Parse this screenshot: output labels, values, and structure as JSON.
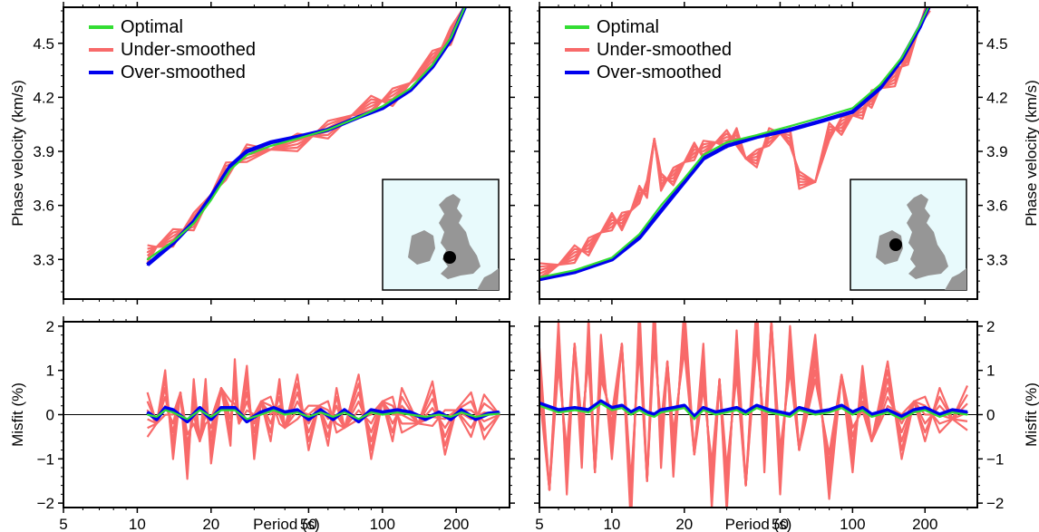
{
  "figure": {
    "legend_labels": [
      "Optimal",
      "Under-smoothed",
      "Over-smoothed"
    ],
    "colors": {
      "optimal": "#33dd33",
      "under_smoothed": "#f86a6a",
      "over_smoothed": "#0000ee",
      "map_ocean": "#e8fafc",
      "map_land": "#969696"
    },
    "map_dot_color": "#000000"
  },
  "chart_data": [
    {
      "type": "line",
      "panel": "top-left",
      "xlabel": "",
      "ylabel": "Phase velocity (km/s)",
      "x_scale": "log",
      "xlim": [
        5,
        330
      ],
      "ylim": [
        3.08,
        4.7
      ],
      "y_ticks": [
        "3.3",
        "3.6",
        "3.9",
        "4.2",
        "4.5"
      ],
      "legend": "top-left",
      "series": [
        {
          "name": "Optimal",
          "x": [
            11,
            14,
            17,
            20,
            24,
            28,
            35,
            45,
            60,
            80,
            100,
            130,
            160,
            190,
            220
          ],
          "y": [
            3.3,
            3.4,
            3.5,
            3.63,
            3.8,
            3.88,
            3.93,
            3.97,
            4.02,
            4.09,
            4.15,
            4.25,
            4.38,
            4.53,
            4.72
          ]
        },
        {
          "name": "Under-smoothed",
          "x": [
            11,
            12,
            14,
            17,
            20,
            23,
            28,
            35,
            45,
            60,
            75,
            90,
            110,
            130,
            160,
            190,
            220
          ],
          "y": [
            3.34,
            3.37,
            3.41,
            3.52,
            3.66,
            3.78,
            3.9,
            3.91,
            3.94,
            4.03,
            4.1,
            4.15,
            4.21,
            4.28,
            4.4,
            4.55,
            4.72
          ]
        },
        {
          "name": "Over-smoothed",
          "x": [
            11,
            14,
            17,
            20,
            24,
            28,
            35,
            45,
            60,
            80,
            100,
            130,
            160,
            190,
            220
          ],
          "y": [
            3.27,
            3.39,
            3.51,
            3.65,
            3.82,
            3.9,
            3.95,
            3.98,
            4.02,
            4.09,
            4.14,
            4.24,
            4.37,
            4.52,
            4.72
          ]
        }
      ],
      "inset_map": "bottom-right"
    },
    {
      "type": "line",
      "panel": "top-right",
      "xlabel": "",
      "ylabel": "Phase velocity (km/s)",
      "x_scale": "log",
      "xlim": [
        5,
        330
      ],
      "ylim": [
        3.08,
        4.7
      ],
      "y_ticks": [
        "3.3",
        "3.6",
        "3.9",
        "4.2",
        "4.5"
      ],
      "legend": "top-left",
      "series": [
        {
          "name": "Optimal",
          "x": [
            5,
            7,
            10,
            13,
            16,
            20,
            24,
            30,
            40,
            55,
            75,
            100,
            130,
            160,
            190,
            210
          ],
          "y": [
            3.2,
            3.24,
            3.31,
            3.44,
            3.6,
            3.75,
            3.88,
            3.95,
            3.99,
            4.04,
            4.09,
            4.14,
            4.27,
            4.42,
            4.6,
            4.72
          ]
        },
        {
          "name": "Under-smoothed",
          "x": [
            5,
            6,
            7,
            8,
            9,
            10,
            11,
            12,
            13,
            14,
            15,
            16,
            18,
            20,
            22,
            24,
            27,
            30,
            33,
            36,
            40,
            45,
            50,
            55,
            60,
            70,
            80,
            90,
            100,
            110,
            120,
            130,
            150,
            170,
            190,
            210
          ],
          "y": [
            3.24,
            3.27,
            3.32,
            3.38,
            3.45,
            3.5,
            3.52,
            3.57,
            3.65,
            3.7,
            3.97,
            3.72,
            3.77,
            3.84,
            3.89,
            3.92,
            3.95,
            3.96,
            3.99,
            3.86,
            3.85,
            3.99,
            4.0,
            3.97,
            3.75,
            3.73,
            4.0,
            4.05,
            4.1,
            4.12,
            4.2,
            4.25,
            4.3,
            4.44,
            4.6,
            4.72
          ]
        },
        {
          "name": "Over-smoothed",
          "x": [
            5,
            7,
            10,
            13,
            16,
            20,
            24,
            30,
            40,
            55,
            75,
            100,
            130,
            160,
            190,
            210
          ],
          "y": [
            3.19,
            3.23,
            3.3,
            3.42,
            3.57,
            3.73,
            3.86,
            3.93,
            3.98,
            4.02,
            4.07,
            4.12,
            4.25,
            4.41,
            4.59,
            4.72
          ]
        }
      ],
      "inset_map": "bottom-right"
    },
    {
      "type": "line",
      "panel": "bottom-left",
      "xlabel": "Period (s)",
      "ylabel": "Misfit (%)",
      "x_scale": "log",
      "xlim": [
        5,
        330
      ],
      "ylim": [
        -2.1,
        2.1
      ],
      "x_ticks": [
        "5",
        "10",
        "20",
        "50",
        "100",
        "200"
      ],
      "y_ticks": [
        "-2",
        "-1",
        "0",
        "1",
        "2"
      ],
      "series": [
        {
          "name": "Optimal",
          "x": [
            11,
            12,
            13,
            14,
            16,
            18,
            20,
            22,
            25,
            28,
            32,
            36,
            40,
            45,
            50,
            56,
            63,
            70,
            80,
            90,
            100,
            115,
            130,
            150,
            170,
            190,
            210,
            240,
            270,
            300
          ],
          "y": [
            0,
            -0.05,
            0.1,
            0.05,
            -0.1,
            0.1,
            -0.05,
            0.1,
            0.1,
            -0.1,
            0,
            0.1,
            0,
            0.05,
            -0.05,
            0.05,
            -0.05,
            0.05,
            -0.1,
            0.05,
            0,
            0.05,
            0,
            -0.05,
            0,
            -0.05,
            0.05,
            -0.05,
            0,
            0.02
          ]
        },
        {
          "name": "Under-smoothed",
          "x": [
            11,
            12,
            13,
            14,
            15,
            16,
            17,
            18,
            19,
            20,
            22,
            24,
            25,
            26,
            28,
            30,
            32,
            35,
            38,
            40,
            45,
            50,
            55,
            60,
            65,
            70,
            80,
            90,
            100,
            110,
            120,
            140,
            160,
            180,
            200,
            230,
            260,
            300
          ],
          "y": [
            0.1,
            -0.2,
            0.4,
            -0.4,
            0.5,
            -1.05,
            0.4,
            -0.6,
            0.2,
            -0.5,
            0.6,
            -0.3,
            0.85,
            -0.2,
            0.5,
            -0.4,
            0.3,
            -0.2,
            0.4,
            -0.3,
            0.3,
            -0.2,
            0.2,
            -0.3,
            0.2,
            -0.3,
            0.3,
            -0.4,
            0.3,
            -0.2,
            0.2,
            -0.2,
            0.15,
            -0.3,
            0.1,
            -0.1,
            0.05,
            0
          ]
        },
        {
          "name": "Over-smoothed",
          "x": [
            11,
            12,
            13,
            14,
            16,
            18,
            20,
            22,
            25,
            28,
            32,
            36,
            40,
            45,
            50,
            56,
            63,
            70,
            80,
            90,
            100,
            115,
            130,
            150,
            170,
            190,
            210,
            240,
            270,
            300
          ],
          "y": [
            0.05,
            -0.1,
            0.15,
            0.1,
            -0.15,
            0.15,
            -0.1,
            0.15,
            0.15,
            -0.15,
            0.05,
            0.15,
            0.05,
            0.1,
            -0.1,
            0.1,
            -0.1,
            0.1,
            -0.15,
            0.1,
            0.05,
            0.1,
            0.05,
            -0.1,
            0.05,
            -0.1,
            0.1,
            -0.1,
            0.02,
            0.05
          ]
        }
      ]
    },
    {
      "type": "line",
      "panel": "bottom-right",
      "xlabel": "Period (s)",
      "ylabel": "Misfit (%)",
      "x_scale": "log",
      "xlim": [
        5,
        330
      ],
      "ylim": [
        -2.1,
        2.1
      ],
      "x_ticks": [
        "5",
        "10",
        "20",
        "50",
        "100",
        "200"
      ],
      "y_ticks": [
        "-2",
        "-1",
        "0",
        "1",
        "2"
      ],
      "series": [
        {
          "name": "Optimal",
          "x": [
            5,
            6,
            7,
            8,
            9,
            10,
            11,
            12,
            13,
            14,
            15,
            16,
            18,
            20,
            22,
            24,
            27,
            30,
            33,
            36,
            40,
            45,
            50,
            55,
            60,
            70,
            80,
            90,
            100,
            110,
            120,
            140,
            160,
            180,
            200,
            230,
            260,
            300
          ],
          "y": [
            0.2,
            0.05,
            0.1,
            0.05,
            0.25,
            0.1,
            0.15,
            0,
            0.1,
            0,
            -0.05,
            0.05,
            0.1,
            0.15,
            -0.1,
            0.1,
            0,
            0.05,
            0.1,
            0,
            0.15,
            0.05,
            0,
            -0.05,
            0.1,
            0,
            0.05,
            0.15,
            0,
            0.1,
            -0.05,
            0.05,
            -0.1,
            0.05,
            0.1,
            -0.05,
            0.05,
            0
          ]
        },
        {
          "name": "Under-smoothed",
          "x": [
            5,
            5.5,
            6,
            6.5,
            7,
            7.5,
            8,
            8.5,
            9,
            10,
            11,
            12,
            13,
            14,
            15,
            16,
            17,
            18,
            20,
            22,
            24,
            26,
            28,
            30,
            33,
            36,
            40,
            43,
            46,
            50,
            55,
            60,
            70,
            80,
            90,
            100,
            110,
            120,
            140,
            160,
            180,
            200,
            230,
            260,
            300
          ],
          "y": [
            1.1,
            -1.7,
            1.5,
            -1.2,
            1.6,
            -0.8,
            1.8,
            -1.3,
            1.2,
            -0.4,
            1.6,
            -2.1,
            2.1,
            -1.5,
            2.0,
            -0.6,
            1.2,
            -1.0,
            2.05,
            -0.9,
            1.0,
            -1.5,
            0.8,
            -1.8,
            1.5,
            -1.6,
            2.0,
            -0.7,
            2.1,
            -1.4,
            1.6,
            -0.8,
            1.2,
            -1.3,
            0.9,
            -0.9,
            0.7,
            -0.6,
            0.6,
            -0.4,
            0.3,
            -0.2,
            0.2,
            -0.1,
            0.05
          ]
        },
        {
          "name": "Over-smoothed",
          "x": [
            5,
            6,
            7,
            8,
            9,
            10,
            11,
            12,
            13,
            14,
            15,
            16,
            18,
            20,
            22,
            24,
            27,
            30,
            33,
            36,
            40,
            45,
            50,
            55,
            60,
            70,
            80,
            90,
            100,
            110,
            120,
            140,
            160,
            180,
            200,
            230,
            260,
            300
          ],
          "y": [
            0.25,
            0.1,
            0.15,
            0.1,
            0.3,
            0.15,
            0.2,
            0.05,
            0.15,
            0.05,
            0,
            0.1,
            0.15,
            0.2,
            -0.05,
            0.15,
            0.05,
            0.1,
            0.15,
            0.05,
            0.2,
            0.1,
            0.05,
            0,
            0.15,
            0.05,
            0.1,
            0.2,
            0.05,
            0.15,
            0,
            0.1,
            -0.05,
            0.1,
            0.15,
            0,
            0.1,
            0.05
          ]
        }
      ]
    }
  ]
}
